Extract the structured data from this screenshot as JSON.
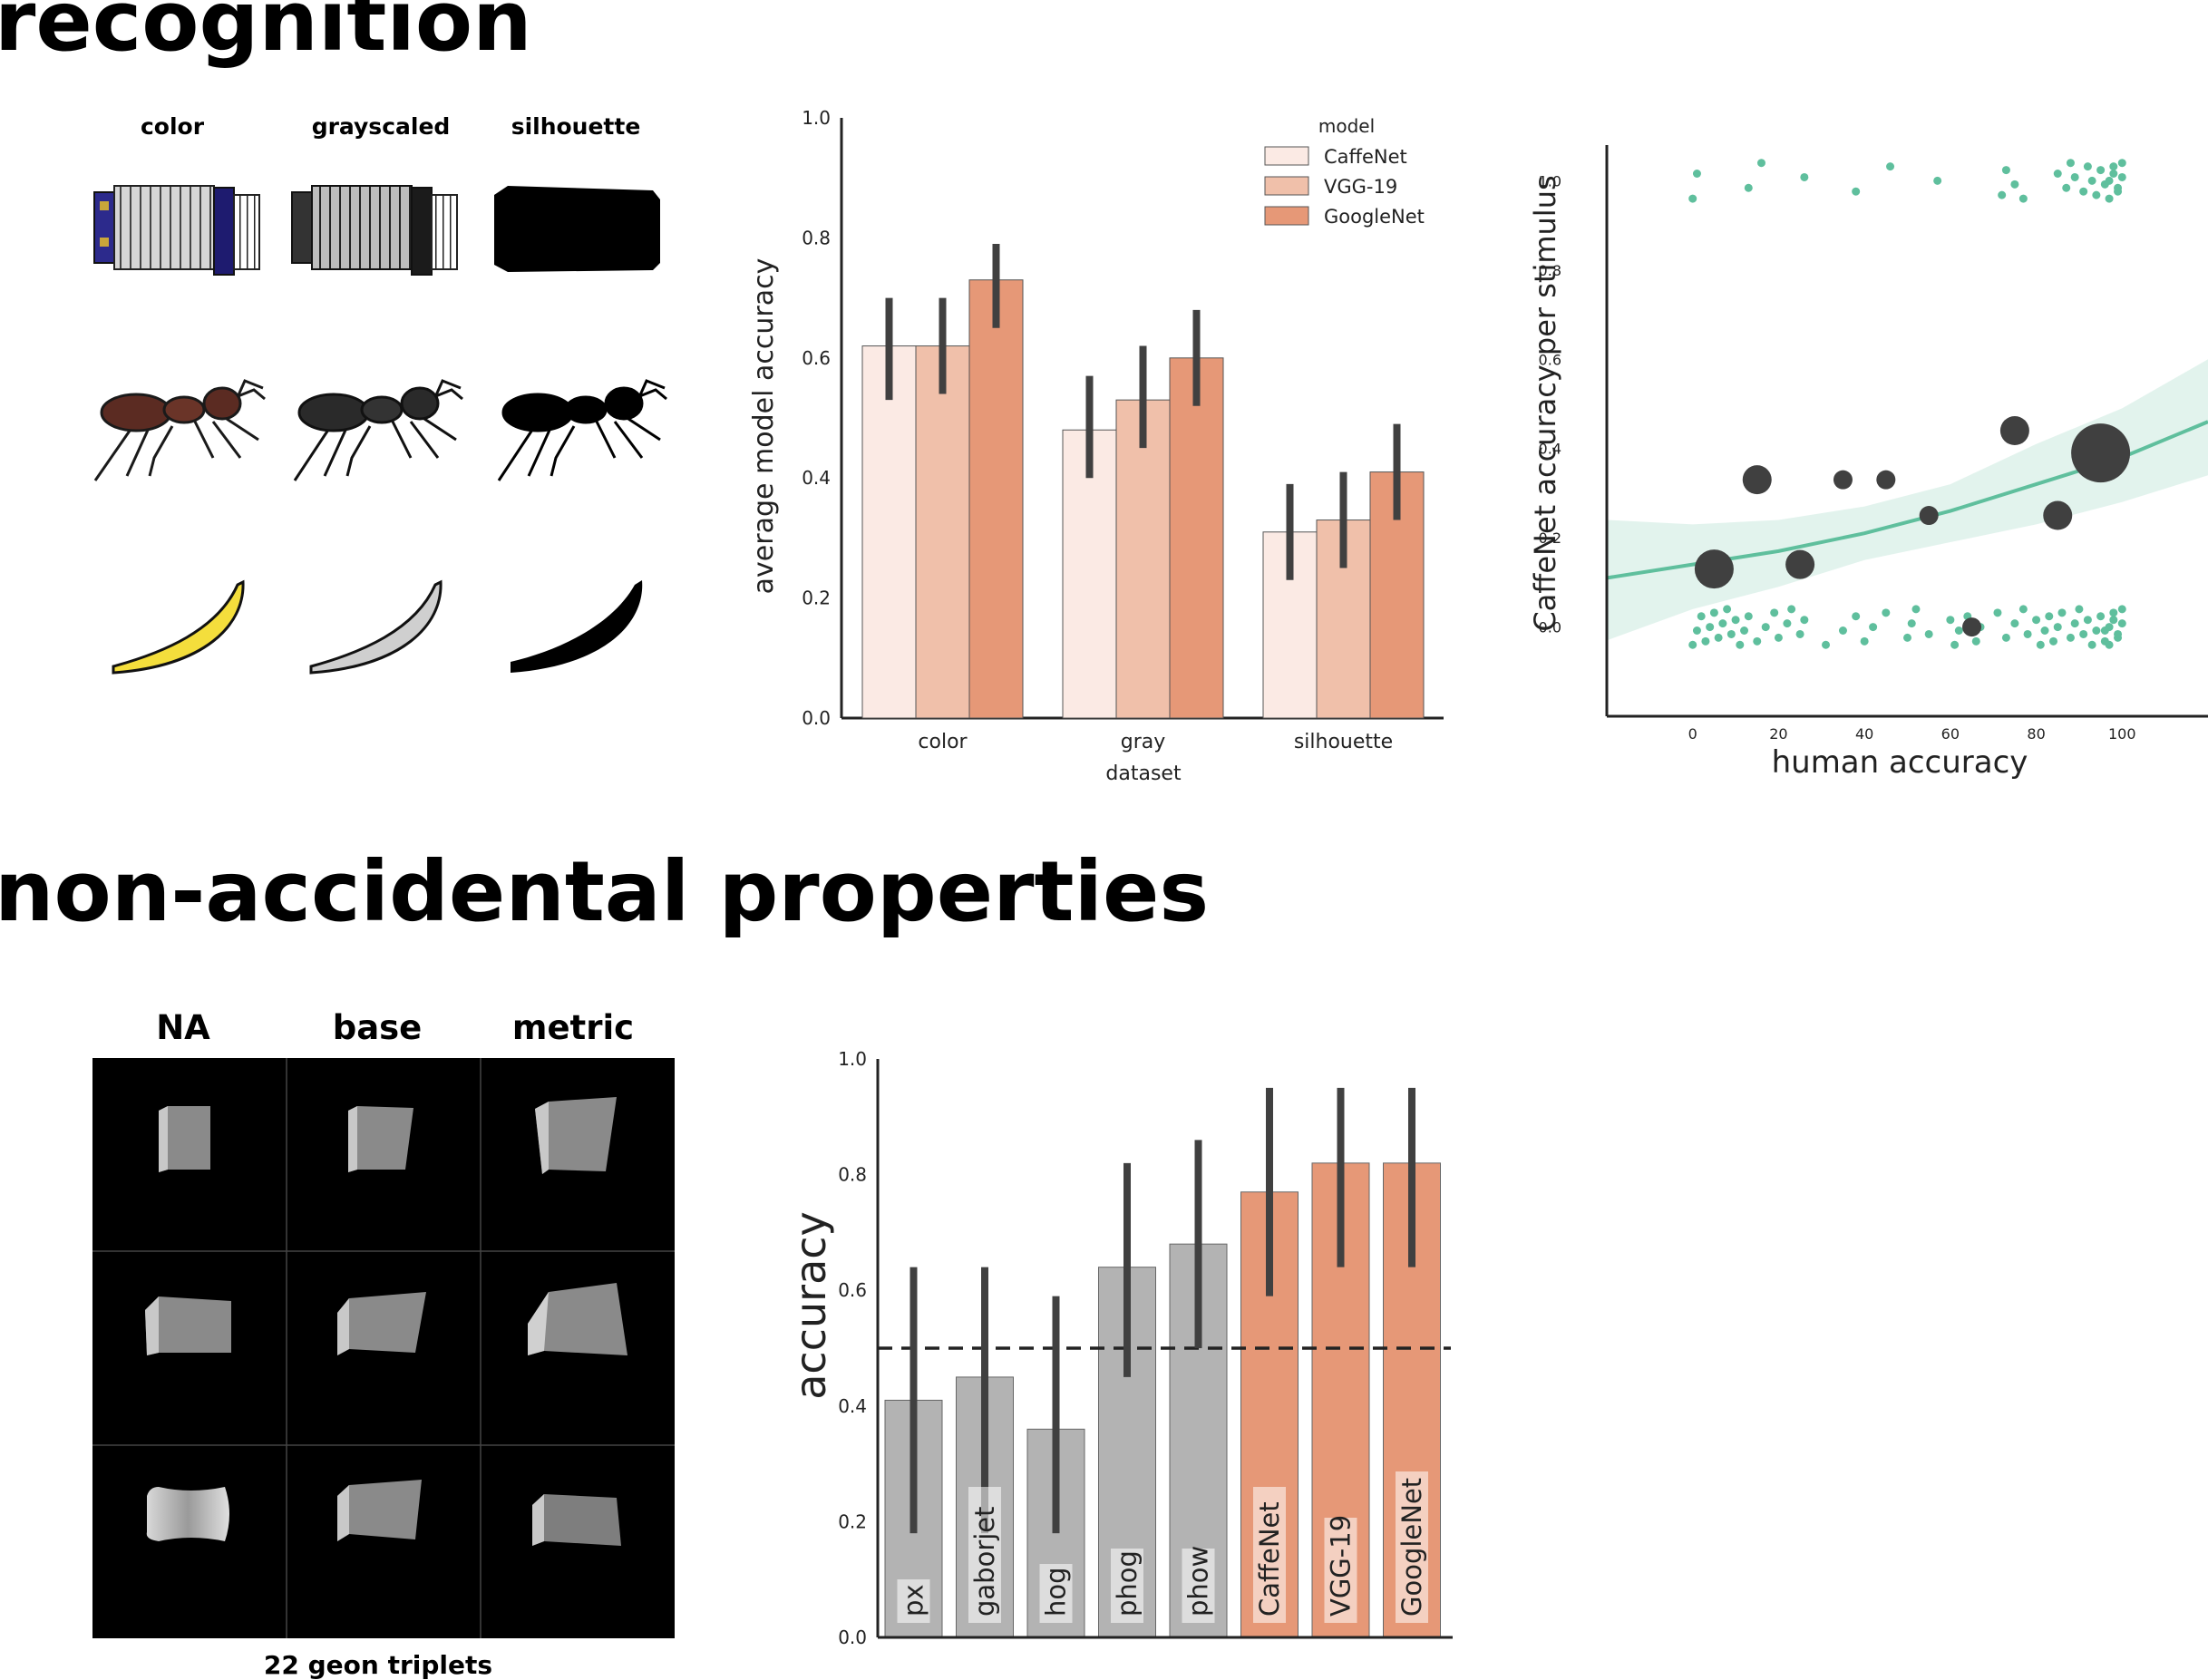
{
  "sections": {
    "recognition_title": "recognition",
    "nap_title": "non-accidental properties"
  },
  "recognition_panel": {
    "columns": [
      "color",
      "grayscaled",
      "silhouette"
    ],
    "rows": [
      "accordion",
      "ant",
      "banana"
    ]
  },
  "nap_panel": {
    "columns": [
      "NA",
      "base",
      "metric"
    ],
    "caption": "22 geon triplets"
  },
  "colors": {
    "caffenet": "#fbeae4",
    "vgg19": "#f0c0aa",
    "googlenet": "#e69877",
    "gray_bar": "#b3b3b3",
    "teal": "#5fbf9d",
    "dark_point": "#404040",
    "error_bar": "#404040"
  },
  "chart_data": [
    {
      "id": "model-accuracy-by-dataset",
      "type": "bar",
      "categories": [
        "color",
        "gray",
        "silhouette"
      ],
      "series": [
        {
          "name": "CaffeNet",
          "values": [
            0.62,
            0.48,
            0.31
          ],
          "err_low": [
            0.53,
            0.4,
            0.23
          ],
          "err_high": [
            0.7,
            0.57,
            0.39
          ]
        },
        {
          "name": "VGG-19",
          "values": [
            0.62,
            0.53,
            0.33
          ],
          "err_low": [
            0.54,
            0.45,
            0.25
          ],
          "err_high": [
            0.7,
            0.62,
            0.41
          ]
        },
        {
          "name": "GoogleNet",
          "values": [
            0.73,
            0.6,
            0.41
          ],
          "err_low": [
            0.65,
            0.52,
            0.33
          ],
          "err_high": [
            0.79,
            0.68,
            0.49
          ]
        }
      ],
      "xlabel": "dataset",
      "ylabel": "average model accuracy",
      "ylim": [
        0.0,
        1.0
      ],
      "yticks": [
        "0.0",
        "0.2",
        "0.4",
        "0.6",
        "0.8",
        "1.0"
      ],
      "legend_title": "model",
      "legend_position": "top-right",
      "grid": false
    },
    {
      "id": "caffenet-vs-human",
      "type": "scatter",
      "xlabel": "human accuracy",
      "ylabel": "CaffeNet accuracy per stimulus",
      "xlim": [
        -20,
        120
      ],
      "ylim": [
        -0.2,
        1.08
      ],
      "xticks": [
        "0",
        "20",
        "40",
        "60",
        "80",
        "100"
      ],
      "yticks": [
        "0.0",
        "0.2",
        "0.4",
        "0.6",
        "0.8",
        "1.0"
      ],
      "grid": false,
      "binned_means": [
        {
          "x": 5,
          "y": 0.13,
          "size": 3
        },
        {
          "x": 15,
          "y": 0.33,
          "size": 2
        },
        {
          "x": 25,
          "y": 0.14,
          "size": 2
        },
        {
          "x": 35,
          "y": 0.33,
          "size": 1
        },
        {
          "x": 45,
          "y": 0.33,
          "size": 1
        },
        {
          "x": 55,
          "y": 0.25,
          "size": 1
        },
        {
          "x": 65,
          "y": 0.0,
          "size": 1
        },
        {
          "x": 75,
          "y": 0.44,
          "size": 2
        },
        {
          "x": 85,
          "y": 0.25,
          "size": 2
        },
        {
          "x": 95,
          "y": 0.39,
          "size": 5
        }
      ],
      "fit_line": {
        "x": [
          -20,
          0,
          20,
          40,
          60,
          80,
          100,
          120
        ],
        "y": [
          0.11,
          0.14,
          0.17,
          0.21,
          0.26,
          0.32,
          0.38,
          0.46
        ]
      },
      "fit_band": {
        "x": [
          -20,
          0,
          20,
          40,
          60,
          80,
          100,
          120
        ],
        "low": [
          -0.03,
          0.04,
          0.09,
          0.15,
          0.19,
          0.23,
          0.28,
          0.34
        ],
        "high": [
          0.24,
          0.23,
          0.24,
          0.27,
          0.32,
          0.41,
          0.49,
          0.6
        ]
      },
      "jittered_points": {
        "y_zero_x": [
          0,
          1,
          2,
          3,
          4,
          5,
          6,
          7,
          8,
          9,
          10,
          11,
          12,
          13,
          15,
          17,
          19,
          20,
          22,
          23,
          25,
          26,
          31,
          35,
          38,
          40,
          42,
          45,
          50,
          51,
          52,
          55,
          60,
          61,
          62,
          64,
          66,
          67,
          71,
          73,
          75,
          77,
          78,
          80,
          81,
          82,
          83,
          84,
          85,
          86,
          88,
          89,
          90,
          91,
          92,
          93,
          94,
          95,
          96,
          97,
          98,
          99,
          100,
          100,
          99,
          98,
          97,
          96
        ],
        "y_one_x": [
          0,
          1,
          13,
          16,
          26,
          38,
          46,
          57,
          72,
          73,
          75,
          77,
          85,
          87,
          88,
          89,
          91,
          92,
          93,
          94,
          95,
          96,
          97,
          98,
          99,
          100,
          100,
          99,
          98,
          97
        ]
      }
    },
    {
      "id": "nap-accuracy",
      "type": "bar",
      "categories": [
        "px",
        "gaborjet",
        "hog",
        "phog",
        "phow",
        "CaffeNet",
        "VGG-19",
        "GoogleNet"
      ],
      "values": [
        0.41,
        0.45,
        0.36,
        0.64,
        0.68,
        0.77,
        0.82,
        0.82
      ],
      "err_low": [
        0.18,
        0.18,
        0.18,
        0.45,
        0.5,
        0.59,
        0.64,
        0.64
      ],
      "err_high": [
        0.64,
        0.64,
        0.59,
        0.82,
        0.86,
        0.95,
        0.95,
        0.95
      ],
      "bar_groups": [
        "gray",
        "gray",
        "gray",
        "gray",
        "gray",
        "orange",
        "orange",
        "orange"
      ],
      "chance_line": 0.5,
      "ylabel": "accuracy",
      "ylim": [
        0.0,
        1.0
      ],
      "yticks": [
        "0.0",
        "0.2",
        "0.4",
        "0.6",
        "0.8",
        "1.0"
      ],
      "grid": false
    }
  ]
}
